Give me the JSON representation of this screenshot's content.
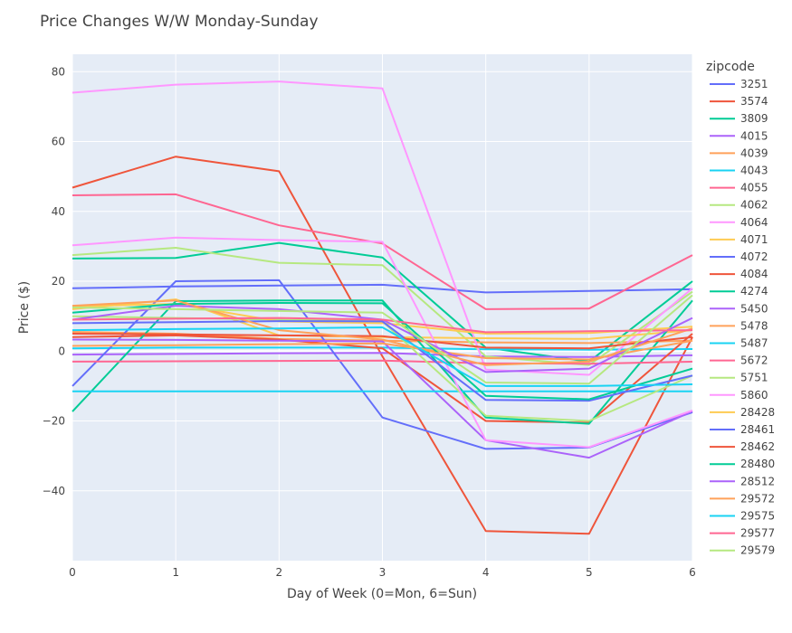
{
  "chart_data": {
    "type": "line",
    "title": "Price Changes W/W Monday-Sunday",
    "xlabel": "Day of Week (0=Mon, 6=Sun)",
    "ylabel": "Price ($)",
    "xlim": [
      0,
      6
    ],
    "ylim": [
      -60,
      85
    ],
    "x": [
      0,
      1,
      2,
      3,
      4,
      5,
      6
    ],
    "x_ticks": [
      "0",
      "1",
      "2",
      "3",
      "4",
      "5",
      "6"
    ],
    "y_ticks": [
      -40,
      -20,
      0,
      20,
      40,
      60,
      80
    ],
    "y_tick_labels": [
      "−40",
      "−20",
      "0",
      "20",
      "40",
      "60",
      "80"
    ],
    "grid": true,
    "background": "#E5ECF6",
    "legend_title": "zipcode",
    "legend_position": "right",
    "series": [
      {
        "name": "3251",
        "color": "#636EFA",
        "values": [
          18,
          18.5,
          18.8,
          19,
          16.8,
          17.2,
          17.7
        ]
      },
      {
        "name": "3574",
        "color": "#EF553B",
        "values": [
          46.8,
          55.7,
          51.5,
          -1.5,
          -51.5,
          -52.3,
          4
        ]
      },
      {
        "name": "3809",
        "color": "#00CC96",
        "values": [
          26.5,
          26.7,
          31,
          26.8,
          1,
          -3,
          20
        ]
      },
      {
        "name": "4015",
        "color": "#AB63FA",
        "values": [
          -1,
          -0.8,
          -0.6,
          -0.5,
          -1.5,
          -1.7,
          -1.2
        ]
      },
      {
        "name": "4039",
        "color": "#FFA15A",
        "values": [
          5.5,
          5,
          3.5,
          3,
          2.5,
          2.3,
          3
        ]
      },
      {
        "name": "4043",
        "color": "#19D3F3",
        "values": [
          0.8,
          1,
          1,
          1,
          0.5,
          0.4,
          0.6
        ]
      },
      {
        "name": "4055",
        "color": "#FF6692",
        "values": [
          44.6,
          44.9,
          36,
          30.8,
          12,
          12.2,
          27.5
        ]
      },
      {
        "name": "4062",
        "color": "#B6E880",
        "values": [
          27.5,
          29.6,
          25.3,
          24.6,
          -1.5,
          -4,
          17
        ]
      },
      {
        "name": "4064",
        "color": "#FF97FF",
        "values": [
          74,
          76.3,
          77.2,
          75.2,
          -5.3,
          -6.8,
          18
        ]
      },
      {
        "name": "4071",
        "color": "#FECB52",
        "values": [
          12,
          14.8,
          4.5,
          4,
          3.7,
          3.5,
          6
        ]
      },
      {
        "name": "4072",
        "color": "#636EFA",
        "values": [
          -10,
          20,
          20.3,
          -19,
          -28,
          -27.6,
          -17.5
        ]
      },
      {
        "name": "4084",
        "color": "#EF553B",
        "values": [
          4,
          4.5,
          3.3,
          0.8,
          -20,
          -20.5,
          5
        ]
      },
      {
        "name": "4274",
        "color": "#00CC96",
        "values": [
          -17.3,
          14.3,
          14.5,
          14.5,
          -19,
          -20.8,
          14.5
        ]
      },
      {
        "name": "5450",
        "color": "#AB63FA",
        "values": [
          3.3,
          3.2,
          3,
          2.8,
          -25.5,
          -30.5,
          -17.2
        ]
      },
      {
        "name": "5478",
        "color": "#FFA15A",
        "values": [
          1.5,
          1.7,
          2,
          2.2,
          -2,
          -2.4,
          3
        ]
      },
      {
        "name": "5487",
        "color": "#19D3F3",
        "values": [
          -11.5,
          -11.5,
          -11.5,
          -11.5,
          -11.5,
          -11.5,
          -11.5
        ]
      },
      {
        "name": "5672",
        "color": "#FF6692",
        "values": [
          -3,
          -2.9,
          -2.8,
          -2.7,
          -3.5,
          -3.6,
          -3
        ]
      },
      {
        "name": "5751",
        "color": "#B6E880",
        "values": [
          10,
          9.5,
          9,
          8.5,
          -18.5,
          -20,
          -7
        ]
      },
      {
        "name": "5860",
        "color": "#FF97FF",
        "values": [
          30.3,
          32.5,
          31.8,
          31.3,
          -25.5,
          -27.5,
          -17
        ]
      },
      {
        "name": "28428",
        "color": "#FECB52",
        "values": [
          12.8,
          13.5,
          8.5,
          8,
          5,
          5.2,
          7
        ]
      },
      {
        "name": "28461",
        "color": "#636EFA",
        "values": [
          8,
          8.3,
          8.6,
          8.5,
          -14,
          -14.2,
          -7
        ]
      },
      {
        "name": "28462",
        "color": "#EF553B",
        "values": [
          5,
          4.8,
          4.5,
          4.3,
          1,
          0.8,
          4
        ]
      },
      {
        "name": "28480",
        "color": "#00CC96",
        "values": [
          11,
          13.5,
          13.8,
          13.7,
          -12.8,
          -13.8,
          -5
        ]
      },
      {
        "name": "28512",
        "color": "#AB63FA",
        "values": [
          9,
          13,
          12,
          9,
          -6,
          -5,
          9.5
        ]
      },
      {
        "name": "29572",
        "color": "#FFA15A",
        "values": [
          13,
          14.5,
          6,
          3.3,
          -4,
          -3,
          6.5
        ]
      },
      {
        "name": "29575",
        "color": "#19D3F3",
        "values": [
          6,
          6.3,
          6.5,
          6.8,
          -10,
          -10,
          -9.5
        ]
      },
      {
        "name": "29577",
        "color": "#FF6692",
        "values": [
          9,
          9.3,
          9.5,
          9,
          5.4,
          5.7,
          6
        ]
      },
      {
        "name": "29579",
        "color": "#B6E880",
        "values": [
          12.5,
          12,
          11.5,
          11,
          -9,
          -9.3,
          16
        ]
      }
    ]
  }
}
